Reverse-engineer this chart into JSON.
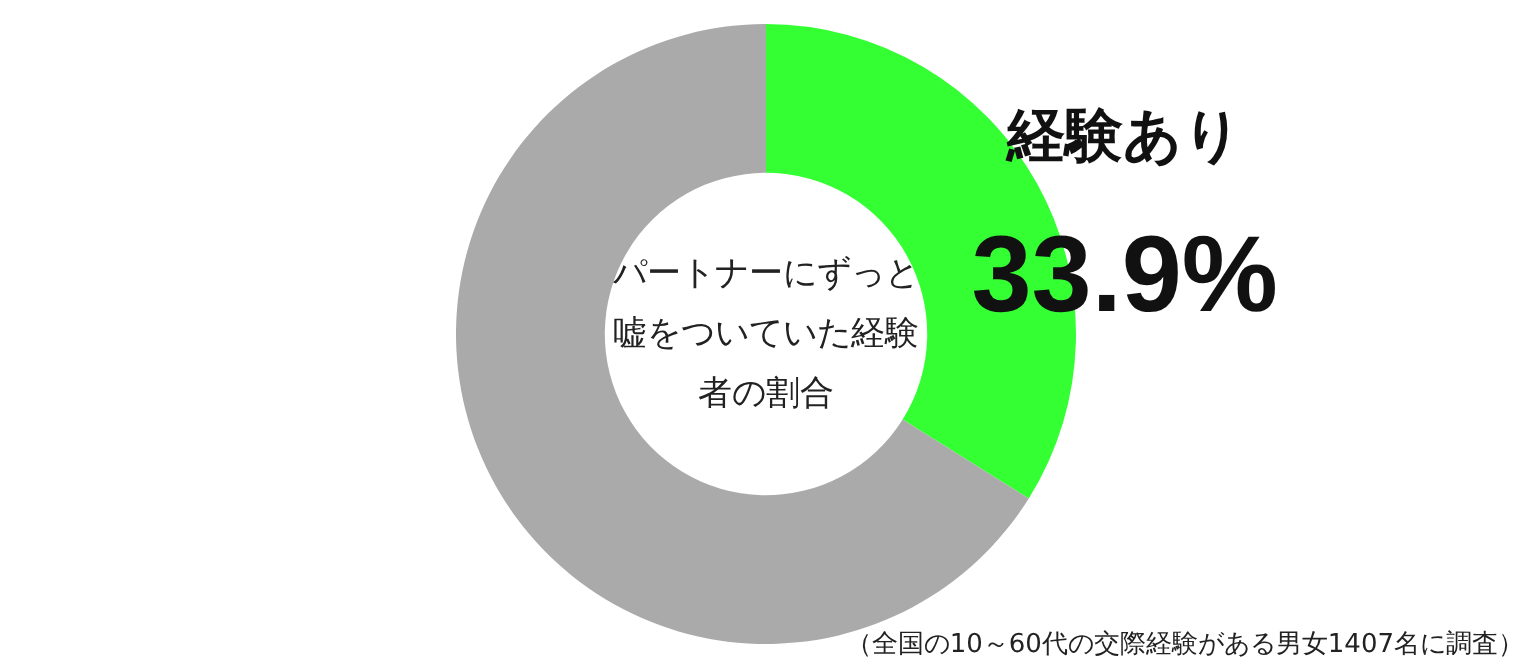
{
  "chart_data": {
    "type": "donut",
    "title": "パートナーにずっと嘘をついていた経験者の割合",
    "categories": [
      "経験あり",
      null
    ],
    "values": [
      33.9,
      66.1
    ],
    "colors": [
      "#33ff33",
      "#aaaaaa"
    ],
    "value_labels": [
      "33.9%",
      null
    ],
    "annotations": [
      "（全国の10～60代の交際経験がある男女1407名に調査）"
    ]
  }
}
